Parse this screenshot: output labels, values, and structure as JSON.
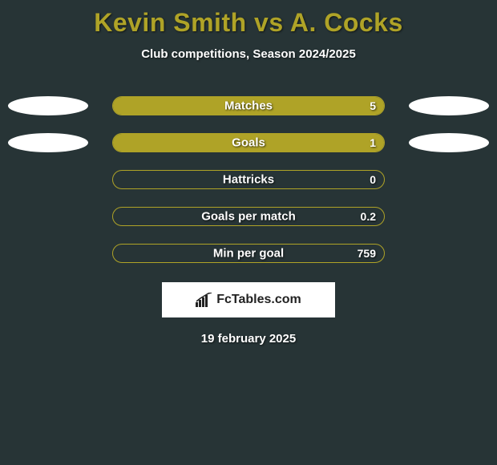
{
  "title_color": "#afa327",
  "background_color": "#273436",
  "player_a": "Kevin Smith",
  "vs_word": "vs",
  "player_b": "A. Cocks",
  "subtitle": "Club competitions, Season 2024/2025",
  "brand": "FcTables.com",
  "date": "19 february 2025",
  "ellipse_color": "#ffffff",
  "rows": [
    {
      "label": "Matches",
      "value": "5",
      "fill_pct": 100,
      "fill_color": "#afa327",
      "border_color": "#afa327",
      "show_left_ellipse": true,
      "show_right_ellipse": true
    },
    {
      "label": "Goals",
      "value": "1",
      "fill_pct": 100,
      "fill_color": "#afa327",
      "border_color": "#afa327",
      "show_left_ellipse": true,
      "show_right_ellipse": true
    },
    {
      "label": "Hattricks",
      "value": "0",
      "fill_pct": 0,
      "fill_color": "#afa327",
      "border_color": "#afa327",
      "show_left_ellipse": false,
      "show_right_ellipse": false
    },
    {
      "label": "Goals per match",
      "value": "0.2",
      "fill_pct": 0,
      "fill_color": "#afa327",
      "border_color": "#afa327",
      "show_left_ellipse": false,
      "show_right_ellipse": false
    },
    {
      "label": "Min per goal",
      "value": "759",
      "fill_pct": 0,
      "fill_color": "#afa327",
      "border_color": "#afa327",
      "show_left_ellipse": false,
      "show_right_ellipse": false
    }
  ],
  "typography": {
    "title_fontsize": 32,
    "subtitle_fontsize": 15,
    "row_label_fontsize": 15,
    "row_value_fontsize": 14,
    "brand_fontsize": 16,
    "date_fontsize": 15
  }
}
